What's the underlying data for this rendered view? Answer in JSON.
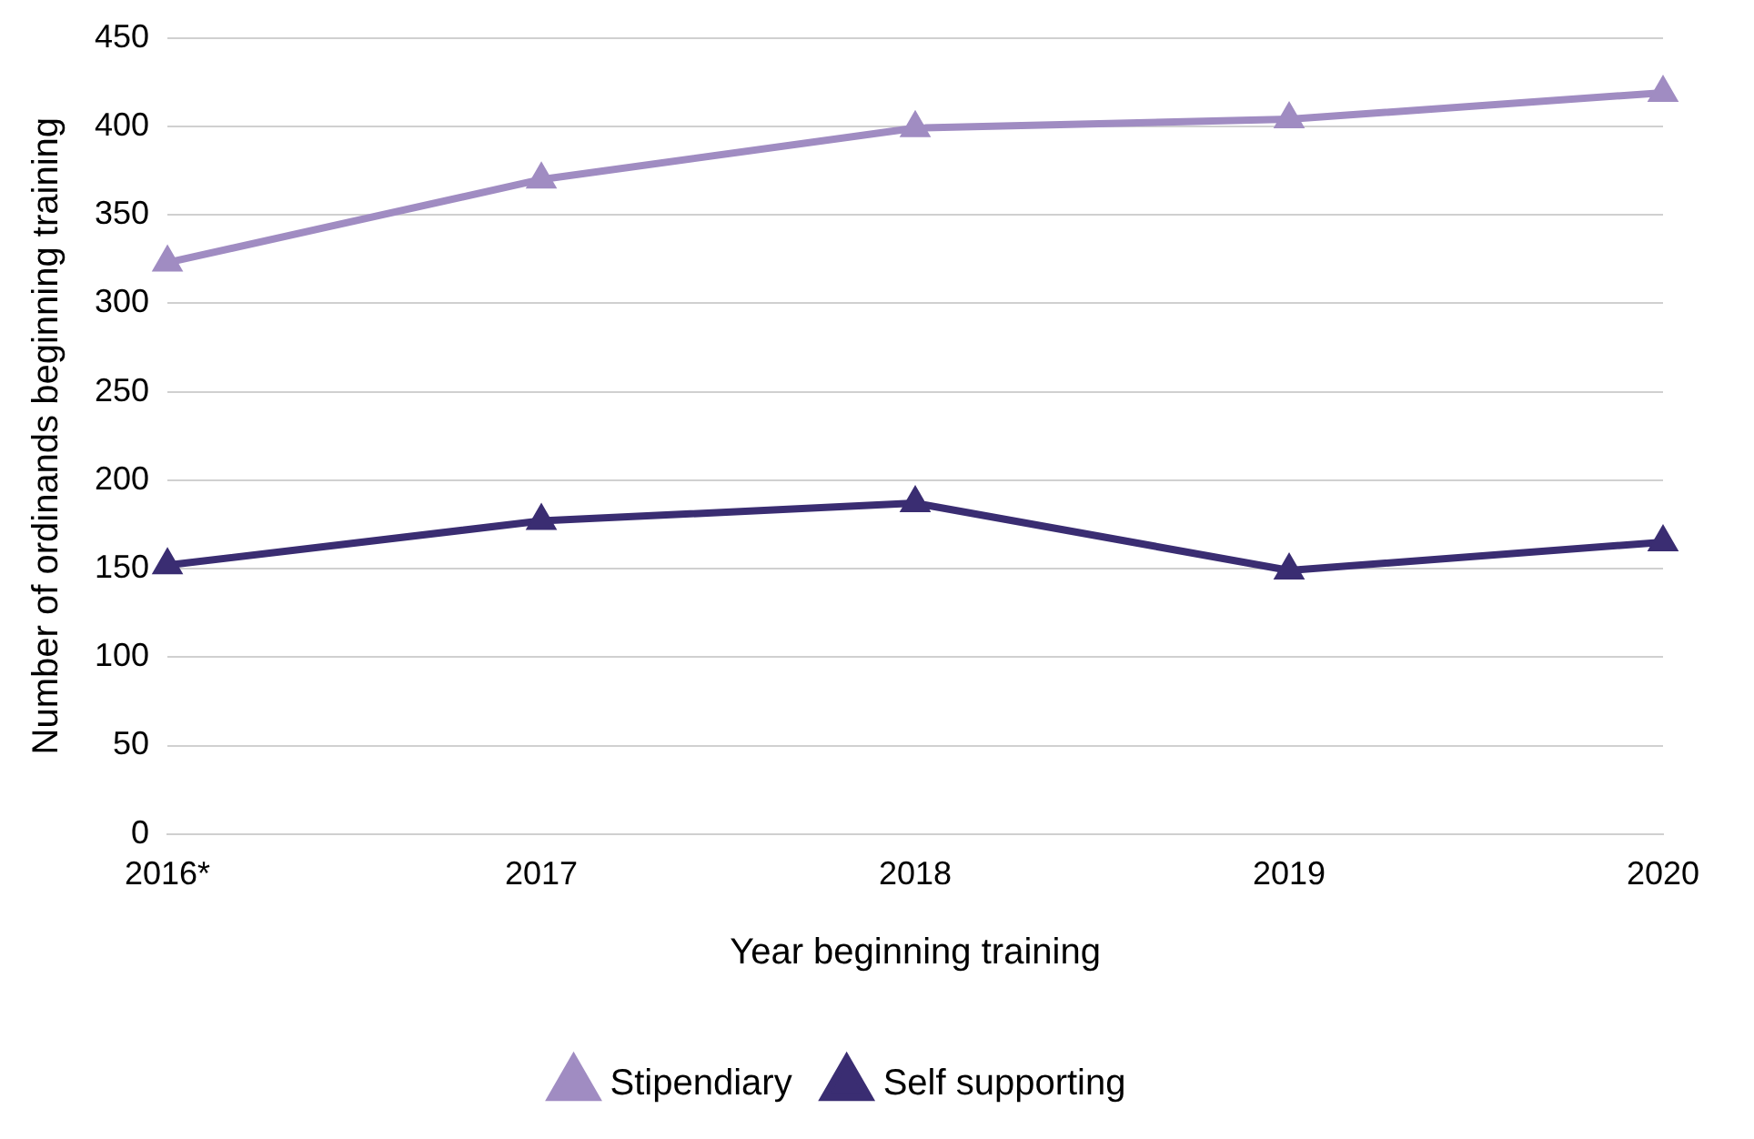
{
  "chart_data": {
    "type": "line",
    "xlabel": "Year beginning training",
    "ylabel": "Number of ordinands beginning training",
    "categories": [
      "2016*",
      "2017",
      "2018",
      "2019",
      "2020"
    ],
    "series": [
      {
        "name": "Stipendiary",
        "color": "#a08cc2",
        "values": [
          323,
          370,
          399,
          404,
          419
        ]
      },
      {
        "name": "Self supporting",
        "color": "#3a2d72",
        "values": [
          152,
          177,
          187,
          149,
          165
        ]
      }
    ],
    "ylim": [
      0,
      450
    ],
    "yticks": [
      0,
      50,
      100,
      150,
      200,
      250,
      300,
      350,
      400,
      450
    ],
    "grid": "y",
    "legend": "bottom",
    "marker": "triangle",
    "line_style": "solid"
  }
}
